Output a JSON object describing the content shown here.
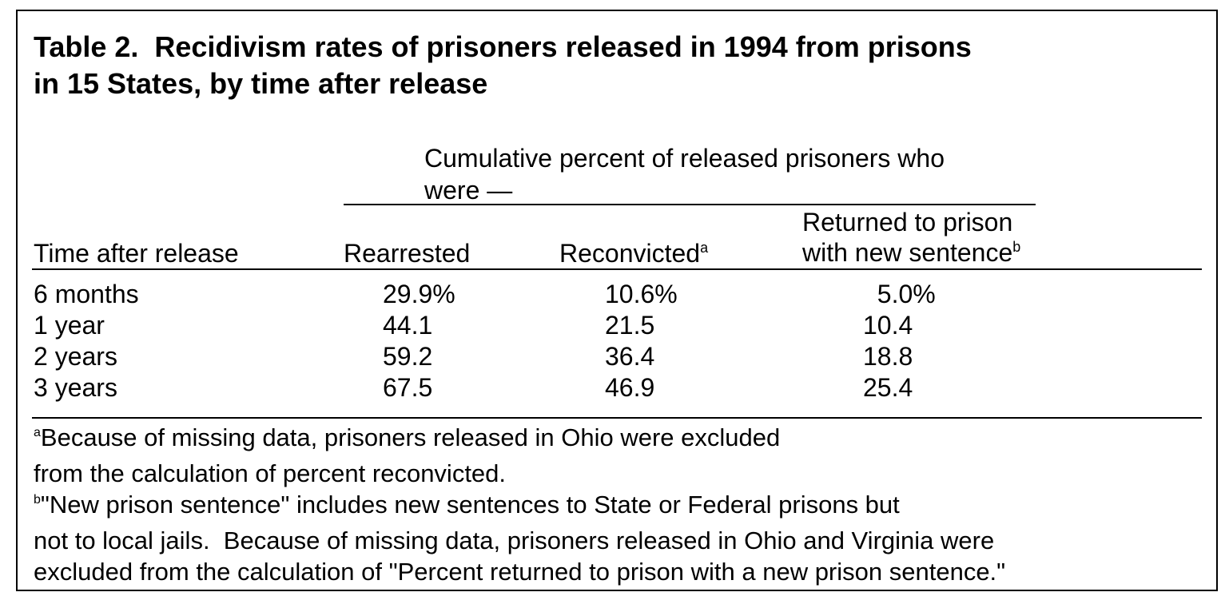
{
  "title": {
    "line1": "Table 2.  Recidivism rates of prisoners released in 1994 from prisons",
    "line2": "in 15 States, by time after release"
  },
  "spanner": {
    "line1": "Cumulative percent of released prisoners who",
    "line2": "were —"
  },
  "columns": {
    "time": "Time after release",
    "rearrested": "Rearrested",
    "reconvicted": "Reconvicted",
    "reconvicted_note": "a",
    "returned_line1": "Returned to prison",
    "returned_line2": "with new sentence",
    "returned_note": "b"
  },
  "rows": [
    {
      "time": "6 months",
      "rearrested": "29.9%",
      "reconvicted": "10.6%",
      "returned": "  5.0%"
    },
    {
      "time": "1 year",
      "rearrested": "44.1",
      "reconvicted": "21.5",
      "returned": "10.4"
    },
    {
      "time": "2 years",
      "rearrested": "59.2",
      "reconvicted": "36.4",
      "returned": "18.8"
    },
    {
      "time": "3 years",
      "rearrested": "67.5",
      "reconvicted": "46.9",
      "returned": "25.4"
    }
  ],
  "footnotes": {
    "a_mark": "a",
    "a_line1": "Because of missing data, prisoners released in Ohio were excluded",
    "a_line2": "from the calculation of percent reconvicted.",
    "b_mark": "b",
    "b_line1": "\"New prison sentence\" includes new sentences to State or Federal prisons but",
    "b_line2": "not to local jails.  Because of missing data, prisoners released in Ohio and Virginia were",
    "b_line3": "excluded from the calculation of \"Percent returned to prison with a new prison sentence.\""
  }
}
